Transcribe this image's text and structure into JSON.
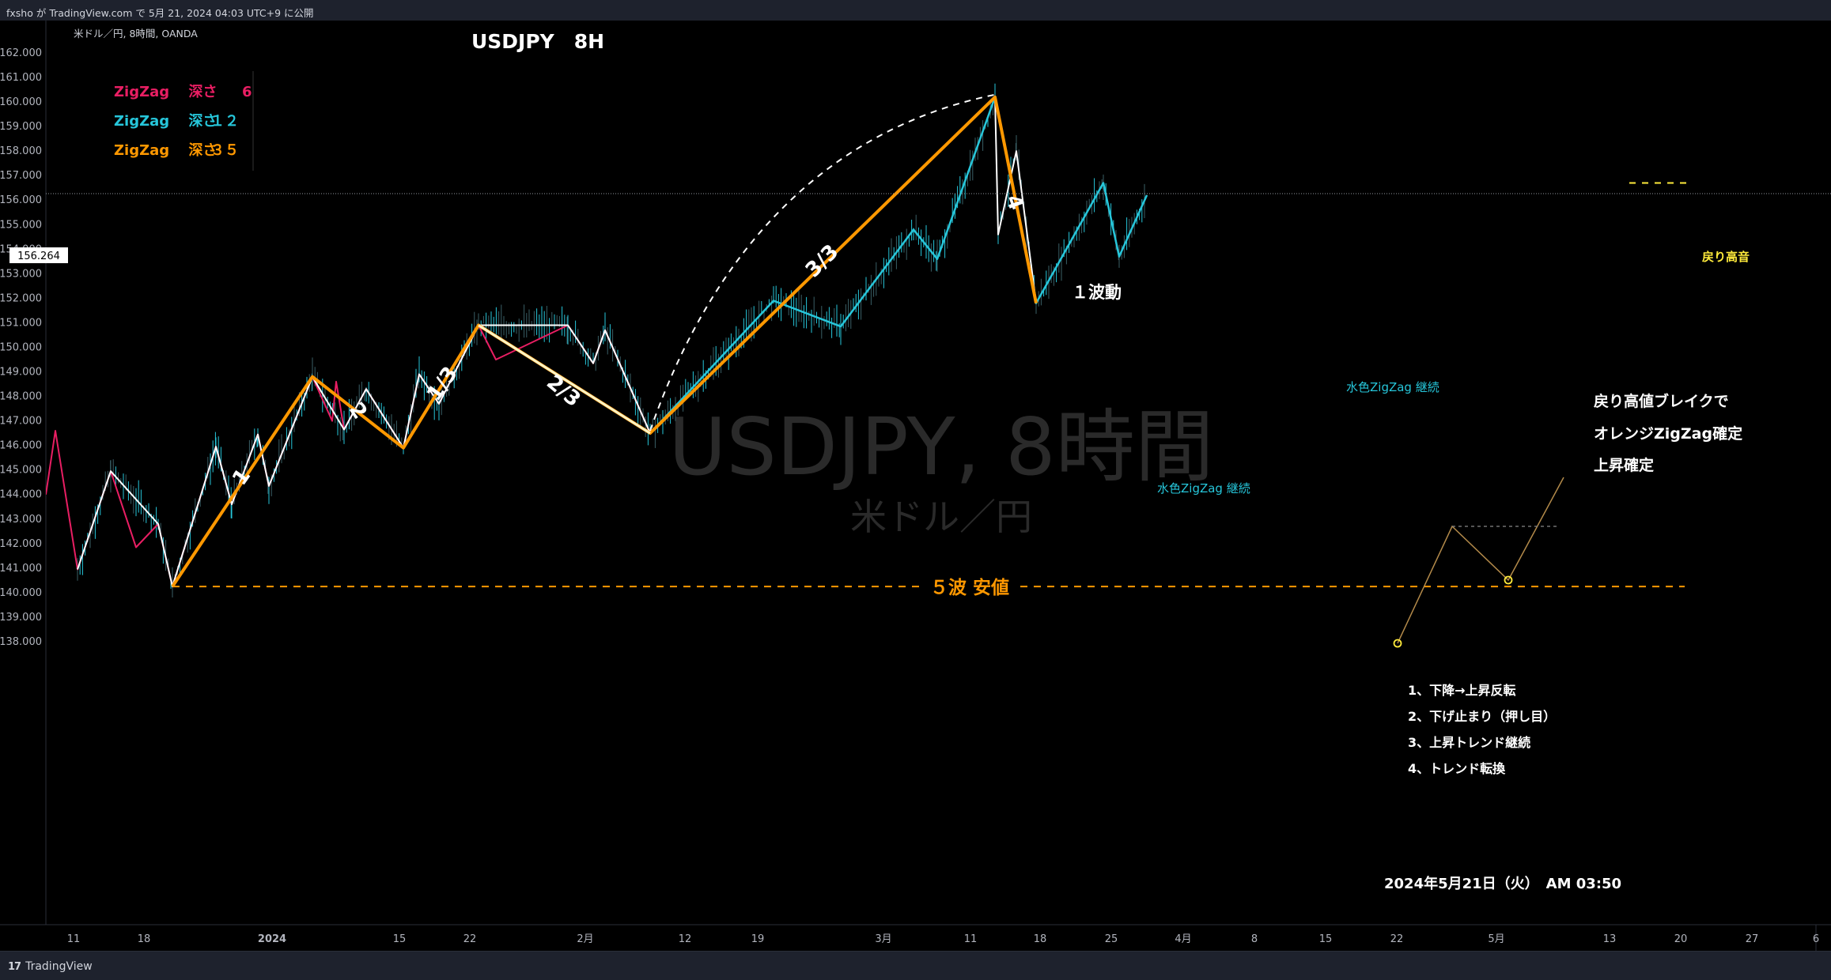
{
  "header": {
    "publish_text": "fxsho が TradingView.com で 5月 21, 2024 04:03 UTC+9 に公開"
  },
  "footer": {
    "logo_text": "TradingView",
    "logo_icon": "tradingview-logo-icon"
  },
  "chart_data": {
    "type": "line",
    "symbol_info": "米ドル／円, 8時間, OANDA",
    "title": "USDJPY　8H",
    "watermark": "USDJPY, 8時間",
    "watermark_sub": "米ドル／円",
    "price_label": "156.264",
    "current_price": 156.264,
    "ylim": [
      137.6,
      162.3
    ],
    "y_ticks": [
      "162.000",
      "161.000",
      "160.000",
      "159.000",
      "158.000",
      "157.000",
      "156.000",
      "155.000",
      "154.000",
      "153.000",
      "152.000",
      "151.000",
      "150.000",
      "149.000",
      "148.000",
      "147.000",
      "146.000",
      "145.000",
      "144.000",
      "143.000",
      "142.000",
      "141.000",
      "140.000",
      "139.000",
      "138.000"
    ],
    "x_ticks": [
      "11",
      "18",
      "2024",
      "15",
      "22",
      "2月",
      "12",
      "19",
      "3月",
      "11",
      "18",
      "25",
      "4月",
      "8",
      "15",
      "22",
      "5月",
      "13",
      "20",
      "27",
      "6"
    ],
    "legend": [
      {
        "label": "ZigZag",
        "depth_label": "深さ",
        "depth": "6",
        "color": "#e91e63"
      },
      {
        "label": "ZigZag",
        "depth_label": "深さ",
        "depth": "１２",
        "color": "#26c6da"
      },
      {
        "label": "ZigZag",
        "depth_label": "深さ",
        "depth": "３５",
        "color": "#ff9800"
      }
    ],
    "series": [
      {
        "name": "ZigZag 深さ 35",
        "color": "#ff9800",
        "points": [
          [
            218,
            140.25
          ],
          [
            395,
            148.8
          ],
          [
            510,
            145.9
          ],
          [
            605,
            150.9
          ],
          [
            822,
            146.5
          ],
          [
            1258,
            160.2
          ],
          [
            1310,
            151.8
          ]
        ]
      },
      {
        "name": "ZigZag 深さ 12",
        "color": "#26c6da",
        "points": [
          [
            822,
            146.5
          ],
          [
            978,
            151.9
          ],
          [
            1063,
            150.85
          ],
          [
            1155,
            154.8
          ],
          [
            1185,
            153.6
          ],
          [
            1258,
            160.2
          ],
          [
            1310,
            151.8
          ],
          [
            1395,
            156.7
          ],
          [
            1415,
            153.7
          ],
          [
            1450,
            156.2
          ]
        ]
      },
      {
        "name": "ZigZag 深さ 6",
        "color": "#e91e63",
        "points": [
          [
            58,
            144
          ],
          [
            70,
            146.6
          ],
          [
            98,
            140.95
          ],
          [
            140,
            144.95
          ],
          [
            172,
            141.85
          ],
          [
            200,
            142.8
          ],
          [
            218,
            140.25
          ],
          [
            273,
            145.95
          ],
          [
            293,
            143.6
          ],
          [
            326,
            146.45
          ],
          [
            340,
            144.35
          ],
          [
            395,
            148.8
          ],
          [
            420,
            147
          ],
          [
            425,
            148.6
          ],
          [
            435,
            146.65
          ],
          [
            463,
            148.3
          ],
          [
            510,
            145.9
          ],
          [
            530,
            148.9
          ],
          [
            555,
            147.7
          ],
          [
            605,
            150.9
          ],
          [
            627,
            149.5
          ],
          [
            718,
            150.9
          ],
          [
            750,
            149.35
          ],
          [
            765,
            150.7
          ],
          [
            822,
            146.5
          ]
        ]
      },
      {
        "name": "white",
        "color": "#ffffff",
        "points": [
          [
            98,
            140.95
          ],
          [
            140,
            144.95
          ],
          [
            200,
            142.8
          ],
          [
            218,
            140.25
          ],
          [
            273,
            145.95
          ],
          [
            293,
            143.6
          ],
          [
            326,
            146.45
          ],
          [
            340,
            144.35
          ],
          [
            395,
            148.8
          ],
          [
            435,
            146.65
          ],
          [
            463,
            148.3
          ],
          [
            510,
            145.9
          ],
          [
            530,
            148.9
          ],
          [
            555,
            147.7
          ],
          [
            605,
            150.9
          ],
          [
            718,
            150.9
          ],
          [
            750,
            149.35
          ],
          [
            765,
            150.7
          ],
          [
            822,
            146.5
          ],
          [
            978,
            151.9
          ],
          [
            1063,
            150.85
          ],
          [
            1155,
            154.8
          ],
          [
            1185,
            153.6
          ],
          [
            1258,
            160.2
          ],
          [
            1262,
            154.6
          ],
          [
            1285,
            158
          ],
          [
            1310,
            151.8
          ],
          [
            1395,
            156.7
          ],
          [
            1415,
            153.7
          ],
          [
            1450,
            156.2
          ]
        ]
      }
    ],
    "annotations": {
      "wave_labels": [
        {
          "text": "1",
          "x": 306,
          "price": 144.7,
          "rotate": -55
        },
        {
          "text": "2",
          "x": 452,
          "price": 147.4,
          "rotate": 55
        },
        {
          "text": "1/3",
          "x": 560,
          "price": 148.5,
          "rotate": -55
        },
        {
          "text": "2/3",
          "x": 712,
          "price": 148.2,
          "rotate": 40
        },
        {
          "text": "3/3",
          "x": 1040,
          "price": 153.5,
          "rotate": -45
        },
        {
          "text": "4",
          "x": 1282,
          "price": 155.9,
          "rotate": 70
        }
      ],
      "wave1_label": "１波動",
      "cyan_label_1": "水色ZigZag 継続",
      "cyan_label_2": "水色ZigZag 継続",
      "wave5_low_label": "５波 安値",
      "return_high_label": "戻り高音",
      "break_notes": [
        "戻り高値ブレイクで",
        "オレンジZigZag確定",
        "上昇確定"
      ],
      "steps": [
        "1、下降→上昇反転",
        "2、下げ止まり（押し目）",
        "3、上昇トレンド継続",
        "4、トレンド転換"
      ],
      "datetime": "2024年5月21日（火）　AM 03:50"
    }
  }
}
